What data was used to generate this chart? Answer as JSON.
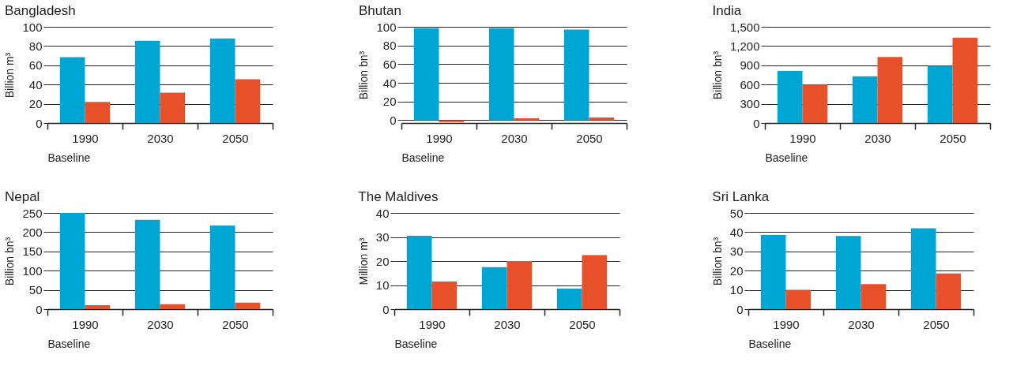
{
  "chart_data": [
    {
      "type": "bar",
      "title": "Bangladesh",
      "xlabel": "Baseline",
      "ylabel": "Billion m³",
      "categories": [
        "1990",
        "2030",
        "2050"
      ],
      "series": [
        {
          "color": "#00a6d3",
          "values": [
            68.5,
            85.5,
            88
          ]
        },
        {
          "color": "#e8502a",
          "values": [
            22,
            31.5,
            45.5
          ]
        }
      ],
      "ylim": [
        0,
        100
      ],
      "yticks": [
        0,
        20,
        40,
        60,
        80,
        100
      ],
      "grid": "y",
      "legend": false
    },
    {
      "type": "bar",
      "title": "Bhutan",
      "xlabel": "Baseline",
      "ylabel": "Billion bn³",
      "categories": [
        "1990",
        "2030",
        "2050"
      ],
      "series": [
        {
          "color": "#00a6d3",
          "values": [
            98.5,
            98.5,
            97
          ]
        },
        {
          "color": "#e8502a",
          "values": [
            -2,
            2,
            3
          ]
        }
      ],
      "ylim": [
        -3,
        100
      ],
      "yticks": [
        0,
        20,
        40,
        60,
        80,
        100
      ],
      "grid": "y",
      "legend": false
    },
    {
      "type": "bar",
      "title": "India",
      "xlabel": "Baseline",
      "ylabel": "Billion bn³",
      "categories": [
        "1990",
        "2030",
        "2050"
      ],
      "series": [
        {
          "color": "#00a6d3",
          "values": [
            810,
            730,
            890
          ]
        },
        {
          "color": "#e8502a",
          "values": [
            600,
            1030,
            1330
          ]
        }
      ],
      "ylim": [
        0,
        1500
      ],
      "yticks": [
        0,
        300,
        600,
        900,
        {
          "value": 1200,
          "label": "1,200"
        },
        {
          "value": 1500,
          "label": "1,500"
        }
      ],
      "grid": "y",
      "legend": false
    },
    {
      "type": "bar",
      "title": "Nepal",
      "xlabel": "Baseline",
      "ylabel": "Billion bn³",
      "categories": [
        "1990",
        "2030",
        "2050"
      ],
      "series": [
        {
          "color": "#00a6d3",
          "values": [
            250,
            232,
            217
          ]
        },
        {
          "color": "#e8502a",
          "values": [
            10,
            13,
            17
          ]
        }
      ],
      "ylim": [
        0,
        250
      ],
      "yticks": [
        0,
        50,
        100,
        150,
        200,
        250
      ],
      "grid": "y",
      "legend": false
    },
    {
      "type": "bar",
      "title": "The Maldives",
      "xlabel": "Baseline",
      "ylabel": "Million m³",
      "categories": [
        "1990",
        "2030",
        "2050"
      ],
      "series": [
        {
          "color": "#00a6d3",
          "values": [
            30.5,
            17.5,
            8.5
          ]
        },
        {
          "color": "#e8502a",
          "values": [
            11.5,
            20,
            22.5
          ]
        }
      ],
      "ylim": [
        0,
        40
      ],
      "yticks": [
        0,
        10,
        20,
        30,
        40
      ],
      "grid": "y",
      "legend": false
    },
    {
      "type": "bar",
      "title": "Sri Lanka",
      "xlabel": "Baseline",
      "ylabel": "Billion bn³",
      "categories": [
        "1990",
        "2030",
        "2050"
      ],
      "series": [
        {
          "color": "#00a6d3",
          "values": [
            38.5,
            38,
            42
          ]
        },
        {
          "color": "#e8502a",
          "values": [
            10,
            13,
            18.5
          ]
        }
      ],
      "ylim": [
        0,
        50
      ],
      "yticks": [
        0,
        10,
        20,
        30,
        40,
        50
      ],
      "grid": "y",
      "legend": false
    }
  ]
}
